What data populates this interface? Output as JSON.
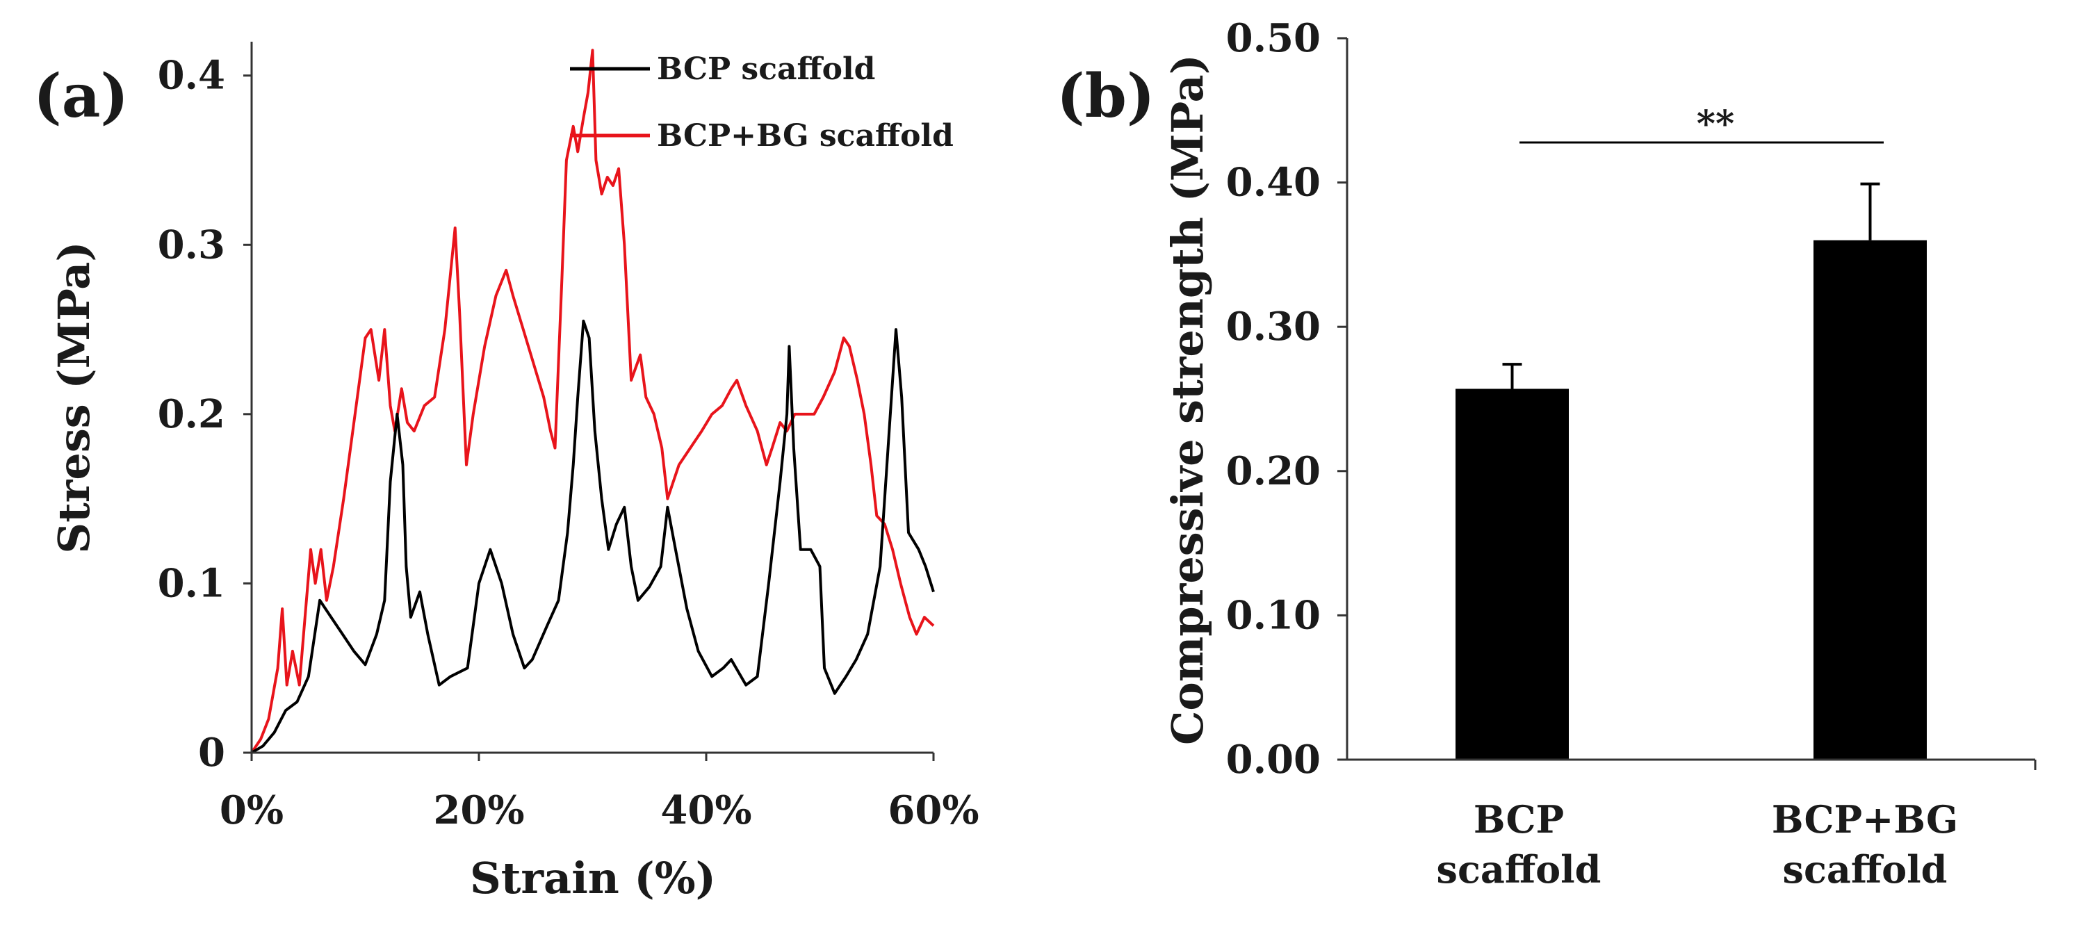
{
  "chart_data": [
    {
      "panel_label": "(a)",
      "type": "line",
      "xlabel": "Strain (%)",
      "ylabel": "Stress (MPa)",
      "xlim": [
        0,
        60
      ],
      "ylim": [
        0,
        0.42
      ],
      "xticks": [
        "0%",
        "20%",
        "40%",
        "60%"
      ],
      "yticks": [
        "0",
        "0.1",
        "0.2",
        "0.3",
        "0.4"
      ],
      "legend_position": "top-right",
      "series": [
        {
          "name": "BCP scaffold",
          "color": "#000000",
          "points": [
            [
              0,
              0
            ],
            [
              1,
              0.004
            ],
            [
              2,
              0.012
            ],
            [
              3,
              0.025
            ],
            [
              4,
              0.03
            ],
            [
              5,
              0.045
            ],
            [
              6,
              0.09
            ],
            [
              7,
              0.08
            ],
            [
              8,
              0.07
            ],
            [
              9,
              0.06
            ],
            [
              10,
              0.052
            ],
            [
              11,
              0.07
            ],
            [
              11.7,
              0.09
            ],
            [
              12.2,
              0.16
            ],
            [
              12.8,
              0.2
            ],
            [
              13.3,
              0.17
            ],
            [
              13.6,
              0.11
            ],
            [
              14,
              0.08
            ],
            [
              14.8,
              0.095
            ],
            [
              15.5,
              0.07
            ],
            [
              16.5,
              0.04
            ],
            [
              17.5,
              0.045
            ],
            [
              19,
              0.05
            ],
            [
              20,
              0.1
            ],
            [
              21,
              0.12
            ],
            [
              22,
              0.1
            ],
            [
              23,
              0.07
            ],
            [
              24,
              0.05
            ],
            [
              24.7,
              0.055
            ],
            [
              26,
              0.075
            ],
            [
              27,
              0.09
            ],
            [
              27.8,
              0.13
            ],
            [
              28.3,
              0.17
            ],
            [
              28.7,
              0.21
            ],
            [
              29.2,
              0.255
            ],
            [
              29.7,
              0.245
            ],
            [
              30.2,
              0.19
            ],
            [
              30.8,
              0.15
            ],
            [
              31.4,
              0.12
            ],
            [
              32.1,
              0.135
            ],
            [
              32.8,
              0.145
            ],
            [
              33.4,
              0.11
            ],
            [
              34,
              0.09
            ],
            [
              35,
              0.098
            ],
            [
              36,
              0.11
            ],
            [
              36.6,
              0.145
            ],
            [
              37.3,
              0.12
            ],
            [
              38.3,
              0.085
            ],
            [
              39.3,
              0.06
            ],
            [
              40.5,
              0.045
            ],
            [
              41.5,
              0.05
            ],
            [
              42.2,
              0.055
            ],
            [
              43.5,
              0.04
            ],
            [
              44.5,
              0.045
            ],
            [
              45.5,
              0.1
            ],
            [
              46.5,
              0.16
            ],
            [
              47.1,
              0.2
            ],
            [
              47.3,
              0.24
            ],
            [
              47.7,
              0.18
            ],
            [
              48.3,
              0.12
            ],
            [
              49.2,
              0.12
            ],
            [
              50,
              0.11
            ],
            [
              50.4,
              0.05
            ],
            [
              51.3,
              0.035
            ],
            [
              52.3,
              0.045
            ],
            [
              53.2,
              0.055
            ],
            [
              54.2,
              0.07
            ],
            [
              55.3,
              0.11
            ],
            [
              56,
              0.18
            ],
            [
              56.7,
              0.25
            ],
            [
              57.2,
              0.21
            ],
            [
              57.8,
              0.13
            ],
            [
              58.7,
              0.12
            ],
            [
              59.3,
              0.11
            ],
            [
              60,
              0.095
            ]
          ]
        },
        {
          "name": "BCP+BG scaffold",
          "color": "#e8141b",
          "points": [
            [
              0,
              0
            ],
            [
              0.8,
              0.008
            ],
            [
              1.5,
              0.02
            ],
            [
              2.3,
              0.05
            ],
            [
              2.7,
              0.085
            ],
            [
              3.1,
              0.04
            ],
            [
              3.6,
              0.06
            ],
            [
              4.2,
              0.04
            ],
            [
              4.7,
              0.08
            ],
            [
              5.2,
              0.12
            ],
            [
              5.6,
              0.1
            ],
            [
              6.1,
              0.12
            ],
            [
              6.6,
              0.09
            ],
            [
              7.2,
              0.11
            ],
            [
              8.1,
              0.15
            ],
            [
              9.1,
              0.2
            ],
            [
              10,
              0.245
            ],
            [
              10.5,
              0.25
            ],
            [
              11.2,
              0.22
            ],
            [
              11.7,
              0.25
            ],
            [
              12.2,
              0.205
            ],
            [
              12.6,
              0.19
            ],
            [
              13.2,
              0.215
            ],
            [
              13.7,
              0.195
            ],
            [
              14.3,
              0.19
            ],
            [
              15.2,
              0.205
            ],
            [
              16.1,
              0.21
            ],
            [
              17,
              0.25
            ],
            [
              17.6,
              0.29
            ],
            [
              17.9,
              0.31
            ],
            [
              18.3,
              0.26
            ],
            [
              18.7,
              0.2
            ],
            [
              18.9,
              0.17
            ],
            [
              19.5,
              0.2
            ],
            [
              20.5,
              0.24
            ],
            [
              21.5,
              0.27
            ],
            [
              22.4,
              0.285
            ],
            [
              23,
              0.27
            ],
            [
              23.9,
              0.25
            ],
            [
              24.8,
              0.23
            ],
            [
              25.7,
              0.21
            ],
            [
              26.3,
              0.19
            ],
            [
              26.7,
              0.18
            ],
            [
              27.3,
              0.28
            ],
            [
              27.7,
              0.35
            ],
            [
              28.3,
              0.37
            ],
            [
              28.7,
              0.355
            ],
            [
              29.2,
              0.375
            ],
            [
              29.6,
              0.39
            ],
            [
              30,
              0.415
            ],
            [
              30.3,
              0.35
            ],
            [
              30.8,
              0.33
            ],
            [
              31.3,
              0.34
            ],
            [
              31.8,
              0.335
            ],
            [
              32.3,
              0.345
            ],
            [
              32.8,
              0.3
            ],
            [
              33.4,
              0.22
            ],
            [
              34.2,
              0.235
            ],
            [
              34.7,
              0.21
            ],
            [
              35.4,
              0.2
            ],
            [
              36.1,
              0.18
            ],
            [
              36.6,
              0.15
            ],
            [
              37.6,
              0.17
            ],
            [
              38.6,
              0.18
            ],
            [
              39.6,
              0.19
            ],
            [
              40.5,
              0.2
            ],
            [
              41.4,
              0.205
            ],
            [
              42.2,
              0.215
            ],
            [
              42.7,
              0.22
            ],
            [
              43.5,
              0.205
            ],
            [
              44.5,
              0.19
            ],
            [
              45.3,
              0.17
            ],
            [
              45.8,
              0.18
            ],
            [
              46.5,
              0.195
            ],
            [
              47.1,
              0.19
            ],
            [
              47.8,
              0.2
            ],
            [
              48.7,
              0.2
            ],
            [
              49.5,
              0.2
            ],
            [
              50.3,
              0.21
            ],
            [
              51.3,
              0.225
            ],
            [
              52.1,
              0.245
            ],
            [
              52.6,
              0.24
            ],
            [
              53.3,
              0.22
            ],
            [
              53.9,
              0.2
            ],
            [
              54.5,
              0.17
            ],
            [
              55,
              0.14
            ],
            [
              55.7,
              0.135
            ],
            [
              56.4,
              0.12
            ],
            [
              57.1,
              0.1
            ],
            [
              57.9,
              0.08
            ],
            [
              58.5,
              0.07
            ],
            [
              59.2,
              0.08
            ],
            [
              60,
              0.075
            ]
          ]
        }
      ]
    },
    {
      "panel_label": "(b)",
      "type": "bar",
      "ylabel": "Compressive strength (MPa)",
      "ylim": [
        0,
        0.5
      ],
      "yticks": [
        "0.00",
        "0.10",
        "0.20",
        "0.30",
        "0.40",
        "0.50"
      ],
      "categories": [
        {
          "line1": "BCP",
          "line2": "scaffold"
        },
        {
          "line1": "BCP+BG",
          "line2": "scaffold"
        }
      ],
      "values": [
        0.257,
        0.36
      ],
      "errors": [
        0.017,
        0.039
      ],
      "bar_color": "#000000",
      "significance": {
        "label": "**",
        "between": [
          0,
          1
        ]
      }
    }
  ]
}
